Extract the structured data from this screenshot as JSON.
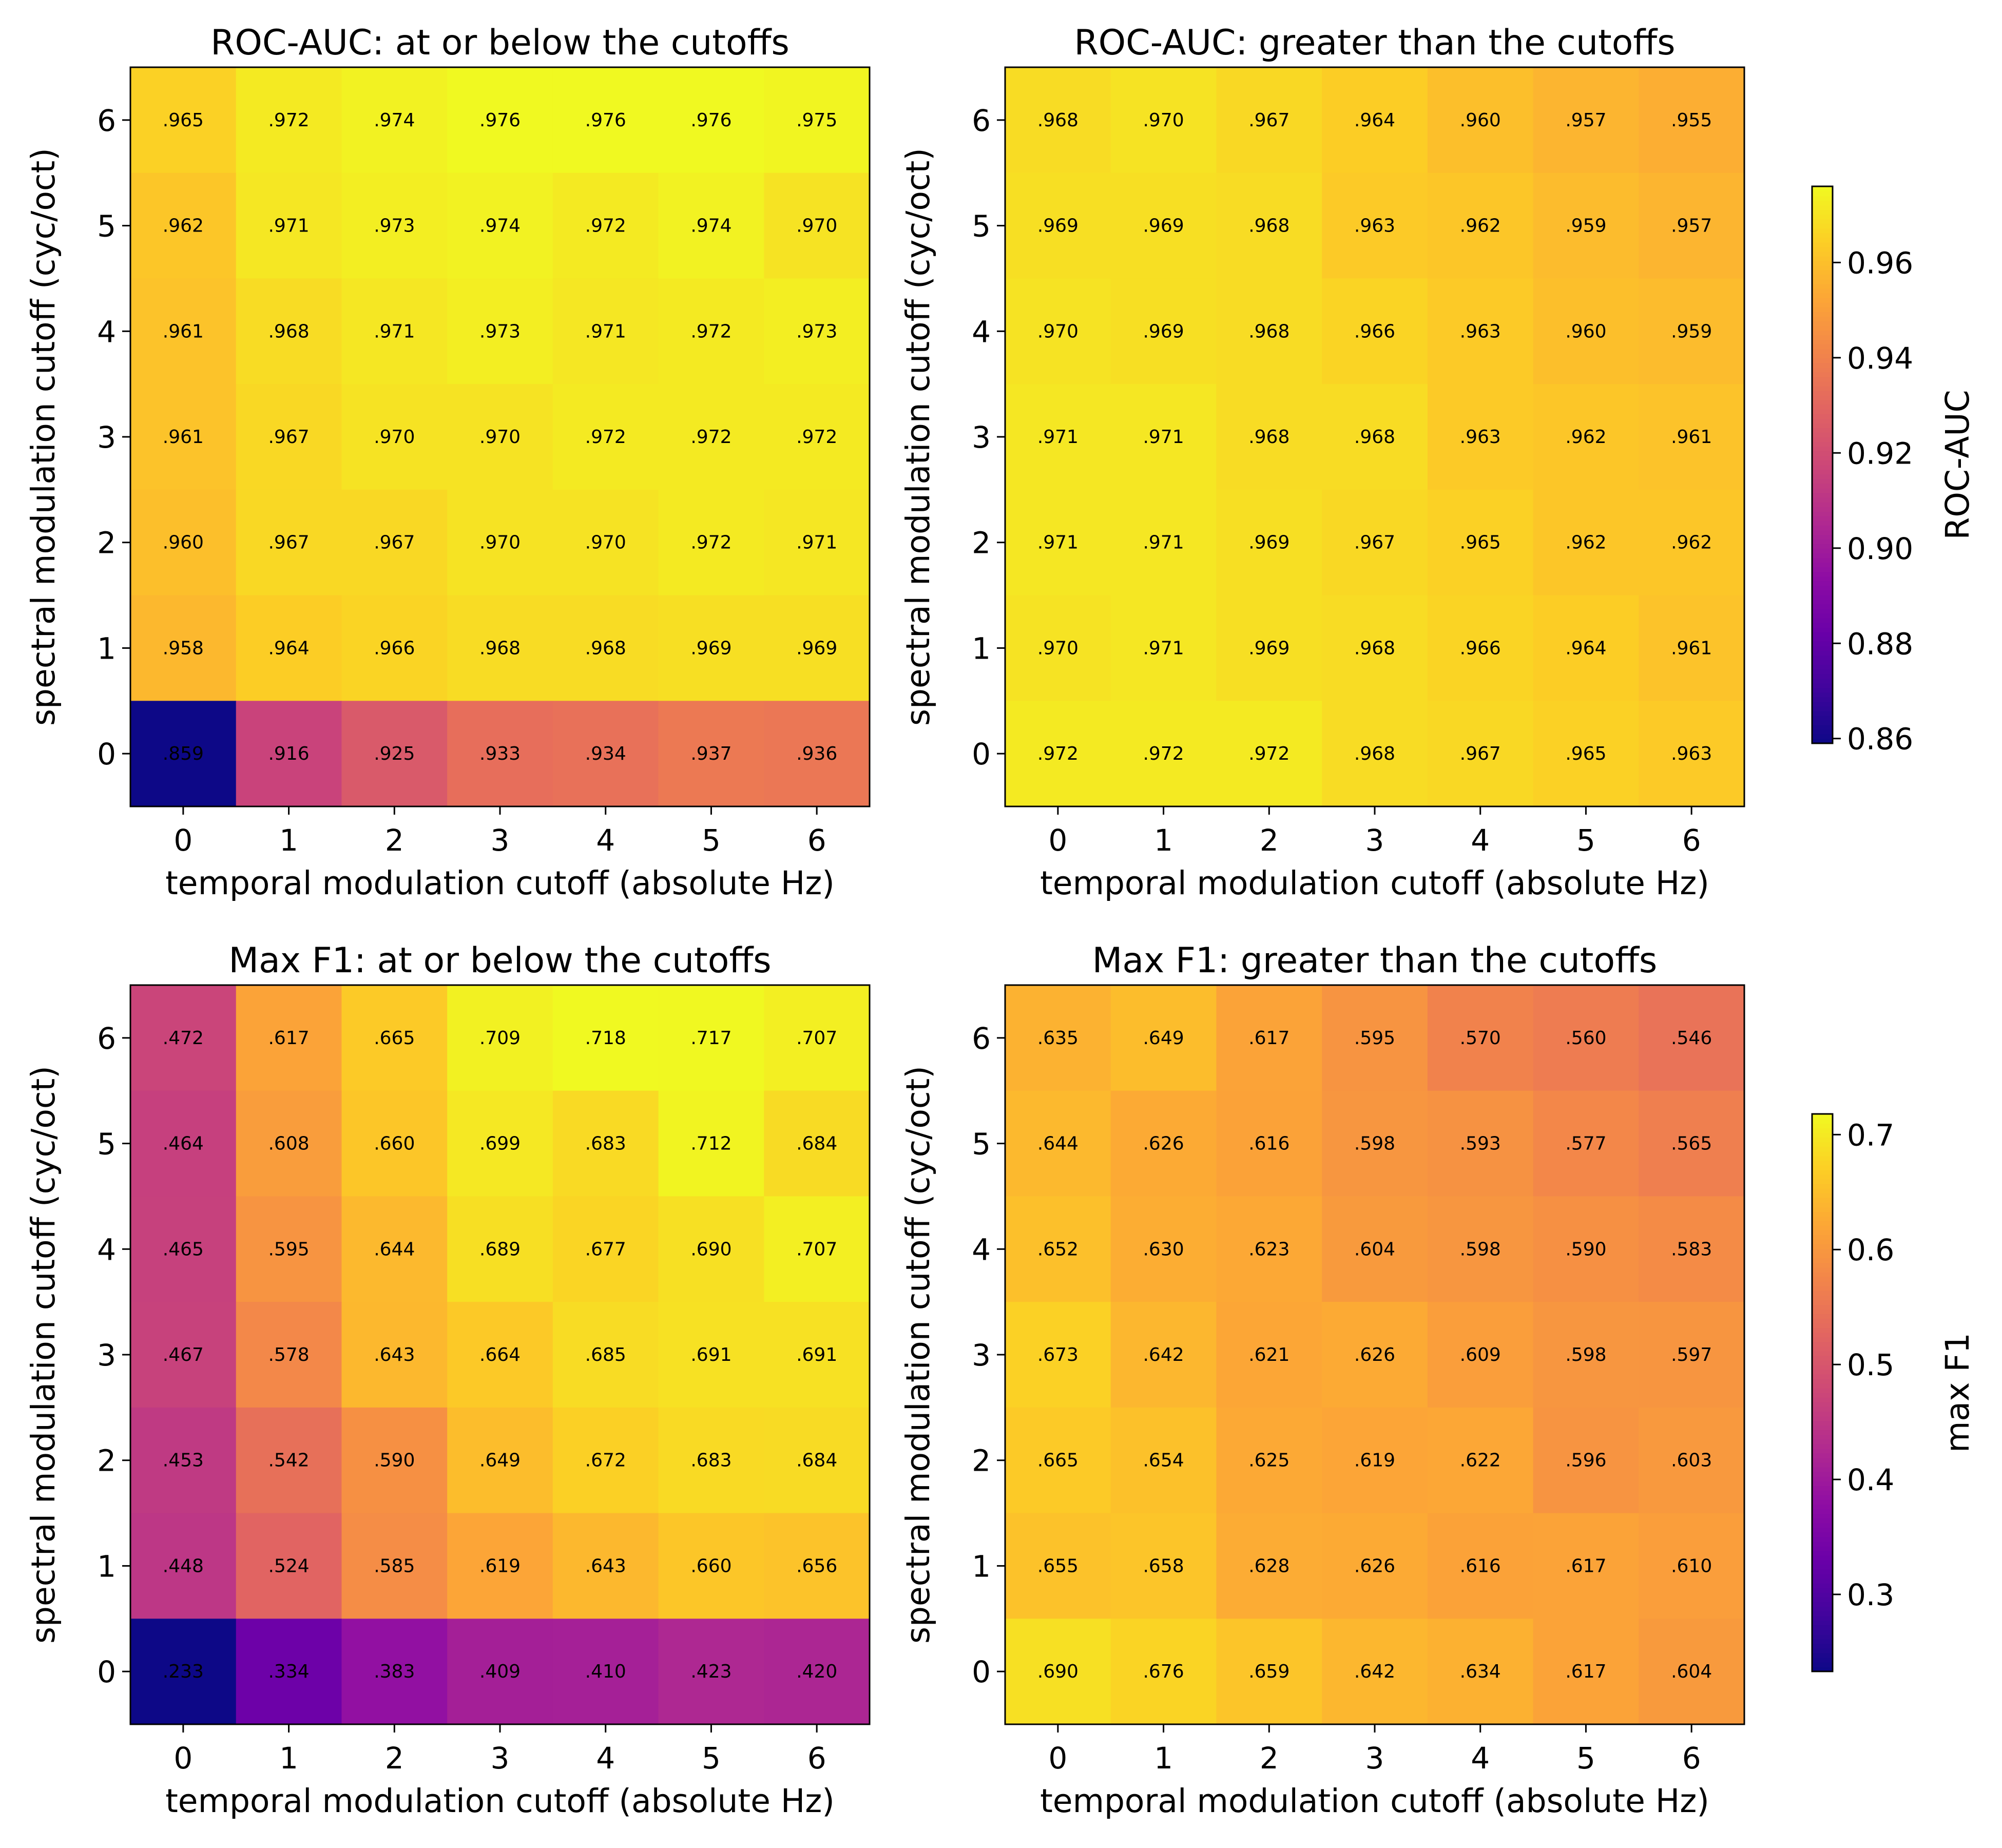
{
  "chart_data": [
    {
      "type": "heatmap",
      "title": "ROC-AUC: at or below the cutoffs",
      "xlabel": "temporal modulation cutoff (absolute Hz)",
      "ylabel": "spectral modulation cutoff (cyc/oct)",
      "x_ticks": [
        "0",
        "1",
        "2",
        "3",
        "4",
        "5",
        "6"
      ],
      "y_ticks": [
        "0",
        "1",
        "2",
        "3",
        "4",
        "5",
        "6"
      ],
      "colormap": "plasma",
      "vmin": 0.859,
      "vmax": 0.976,
      "colorbar": "roc",
      "row_order": "spectral cutoff 6 (top) to 0 (bottom)",
      "values": [
        [
          0.965,
          0.972,
          0.974,
          0.976,
          0.976,
          0.976,
          0.975
        ],
        [
          0.962,
          0.971,
          0.973,
          0.974,
          0.972,
          0.974,
          0.97
        ],
        [
          0.961,
          0.968,
          0.971,
          0.973,
          0.971,
          0.972,
          0.973
        ],
        [
          0.961,
          0.967,
          0.97,
          0.97,
          0.972,
          0.972,
          0.972
        ],
        [
          0.96,
          0.967,
          0.967,
          0.97,
          0.97,
          0.972,
          0.971
        ],
        [
          0.958,
          0.964,
          0.966,
          0.968,
          0.968,
          0.969,
          0.969
        ],
        [
          0.859,
          0.916,
          0.925,
          0.933,
          0.934,
          0.937,
          0.936
        ]
      ],
      "labels": [
        [
          ".965",
          ".972",
          ".974",
          ".976",
          ".976",
          ".976",
          ".975"
        ],
        [
          ".962",
          ".971",
          ".973",
          ".974",
          ".972",
          ".974",
          ".970"
        ],
        [
          ".961",
          ".968",
          ".971",
          ".973",
          ".971",
          ".972",
          ".973"
        ],
        [
          ".961",
          ".967",
          ".970",
          ".970",
          ".972",
          ".972",
          ".972"
        ],
        [
          ".960",
          ".967",
          ".967",
          ".970",
          ".970",
          ".972",
          ".971"
        ],
        [
          ".958",
          ".964",
          ".966",
          ".968",
          ".968",
          ".969",
          ".969"
        ],
        [
          ".859",
          ".916",
          ".925",
          ".933",
          ".934",
          ".937",
          ".936"
        ]
      ]
    },
    {
      "type": "heatmap",
      "title": "ROC-AUC: greater than the cutoffs",
      "xlabel": "temporal modulation cutoff (absolute Hz)",
      "ylabel": "spectral modulation cutoff (cyc/oct)",
      "x_ticks": [
        "0",
        "1",
        "2",
        "3",
        "4",
        "5",
        "6"
      ],
      "y_ticks": [
        "0",
        "1",
        "2",
        "3",
        "4",
        "5",
        "6"
      ],
      "colormap": "plasma",
      "vmin": 0.859,
      "vmax": 0.976,
      "colorbar": "roc",
      "row_order": "spectral cutoff 6 (top) to 0 (bottom)",
      "values": [
        [
          0.968,
          0.97,
          0.967,
          0.964,
          0.96,
          0.957,
          0.955
        ],
        [
          0.969,
          0.969,
          0.968,
          0.963,
          0.962,
          0.959,
          0.957
        ],
        [
          0.97,
          0.969,
          0.968,
          0.966,
          0.963,
          0.96,
          0.959
        ],
        [
          0.971,
          0.971,
          0.968,
          0.968,
          0.963,
          0.962,
          0.961
        ],
        [
          0.971,
          0.971,
          0.969,
          0.967,
          0.965,
          0.962,
          0.962
        ],
        [
          0.97,
          0.971,
          0.969,
          0.968,
          0.966,
          0.964,
          0.961
        ],
        [
          0.972,
          0.972,
          0.972,
          0.968,
          0.967,
          0.965,
          0.963
        ]
      ],
      "labels": [
        [
          ".968",
          ".970",
          ".967",
          ".964",
          ".960",
          ".957",
          ".955"
        ],
        [
          ".969",
          ".969",
          ".968",
          ".963",
          ".962",
          ".959",
          ".957"
        ],
        [
          ".970",
          ".969",
          ".968",
          ".966",
          ".963",
          ".960",
          ".959"
        ],
        [
          ".971",
          ".971",
          ".968",
          ".968",
          ".963",
          ".962",
          ".961"
        ],
        [
          ".971",
          ".971",
          ".969",
          ".967",
          ".965",
          ".962",
          ".962"
        ],
        [
          ".970",
          ".971",
          ".969",
          ".968",
          ".966",
          ".964",
          ".961"
        ],
        [
          ".972",
          ".972",
          ".972",
          ".968",
          ".967",
          ".965",
          ".963"
        ]
      ]
    },
    {
      "type": "heatmap",
      "title": "Max F1: at or below the cutoffs",
      "xlabel": "temporal modulation cutoff (absolute Hz)",
      "ylabel": "spectral modulation cutoff (cyc/oct)",
      "x_ticks": [
        "0",
        "1",
        "2",
        "3",
        "4",
        "5",
        "6"
      ],
      "y_ticks": [
        "0",
        "1",
        "2",
        "3",
        "4",
        "5",
        "6"
      ],
      "colormap": "plasma",
      "vmin": 0.233,
      "vmax": 0.718,
      "colorbar": "f1",
      "row_order": "spectral cutoff 6 (top) to 0 (bottom)",
      "values": [
        [
          0.472,
          0.617,
          0.665,
          0.709,
          0.718,
          0.717,
          0.707
        ],
        [
          0.464,
          0.608,
          0.66,
          0.699,
          0.683,
          0.712,
          0.684
        ],
        [
          0.465,
          0.595,
          0.644,
          0.689,
          0.677,
          0.69,
          0.707
        ],
        [
          0.467,
          0.578,
          0.643,
          0.664,
          0.685,
          0.691,
          0.691
        ],
        [
          0.453,
          0.542,
          0.59,
          0.649,
          0.672,
          0.683,
          0.684
        ],
        [
          0.448,
          0.524,
          0.585,
          0.619,
          0.643,
          0.66,
          0.656
        ],
        [
          0.233,
          0.334,
          0.383,
          0.409,
          0.41,
          0.423,
          0.42
        ]
      ],
      "labels": [
        [
          ".472",
          ".617",
          ".665",
          ".709",
          ".718",
          ".717",
          ".707"
        ],
        [
          ".464",
          ".608",
          ".660",
          ".699",
          ".683",
          ".712",
          ".684"
        ],
        [
          ".465",
          ".595",
          ".644",
          ".689",
          ".677",
          ".690",
          ".707"
        ],
        [
          ".467",
          ".578",
          ".643",
          ".664",
          ".685",
          ".691",
          ".691"
        ],
        [
          ".453",
          ".542",
          ".590",
          ".649",
          ".672",
          ".683",
          ".684"
        ],
        [
          ".448",
          ".524",
          ".585",
          ".619",
          ".643",
          ".660",
          ".656"
        ],
        [
          ".233",
          ".334",
          ".383",
          ".409",
          ".410",
          ".423",
          ".420"
        ]
      ]
    },
    {
      "type": "heatmap",
      "title": "Max F1: greater than the cutoffs",
      "xlabel": "temporal modulation cutoff (absolute Hz)",
      "ylabel": "spectral modulation cutoff (cyc/oct)",
      "x_ticks": [
        "0",
        "1",
        "2",
        "3",
        "4",
        "5",
        "6"
      ],
      "y_ticks": [
        "0",
        "1",
        "2",
        "3",
        "4",
        "5",
        "6"
      ],
      "colormap": "plasma",
      "vmin": 0.233,
      "vmax": 0.718,
      "colorbar": "f1",
      "row_order": "spectral cutoff 6 (top) to 0 (bottom)",
      "values": [
        [
          0.635,
          0.649,
          0.617,
          0.595,
          0.57,
          0.56,
          0.546
        ],
        [
          0.644,
          0.626,
          0.616,
          0.598,
          0.593,
          0.577,
          0.565
        ],
        [
          0.652,
          0.63,
          0.623,
          0.604,
          0.598,
          0.59,
          0.583
        ],
        [
          0.673,
          0.642,
          0.621,
          0.626,
          0.609,
          0.598,
          0.597
        ],
        [
          0.665,
          0.654,
          0.625,
          0.619,
          0.622,
          0.596,
          0.603
        ],
        [
          0.655,
          0.658,
          0.628,
          0.626,
          0.616,
          0.617,
          0.61
        ],
        [
          0.69,
          0.676,
          0.659,
          0.642,
          0.634,
          0.617,
          0.604
        ]
      ],
      "labels": [
        [
          ".635",
          ".649",
          ".617",
          ".595",
          ".570",
          ".560",
          ".546"
        ],
        [
          ".644",
          ".626",
          ".616",
          ".598",
          ".593",
          ".577",
          ".565"
        ],
        [
          ".652",
          ".630",
          ".623",
          ".604",
          ".598",
          ".590",
          ".583"
        ],
        [
          ".673",
          ".642",
          ".621",
          ".626",
          ".609",
          ".598",
          ".597"
        ],
        [
          ".665",
          ".654",
          ".625",
          ".619",
          ".622",
          ".596",
          ".603"
        ],
        [
          ".655",
          ".658",
          ".628",
          ".626",
          ".616",
          ".617",
          ".610"
        ],
        [
          ".690",
          ".676",
          ".659",
          ".642",
          ".634",
          ".617",
          ".604"
        ]
      ]
    }
  ],
  "colorbars": {
    "roc": {
      "label": "ROC-AUC",
      "vmin": 0.859,
      "vmax": 0.976,
      "ticks": [
        0.86,
        0.88,
        0.9,
        0.92,
        0.94,
        0.96
      ],
      "tick_labels": [
        "0.86",
        "0.88",
        "0.90",
        "0.92",
        "0.94",
        "0.96"
      ]
    },
    "f1": {
      "label": "max F1",
      "vmin": 0.233,
      "vmax": 0.718,
      "ticks": [
        0.3,
        0.4,
        0.5,
        0.6,
        0.7
      ],
      "tick_labels": [
        "0.3",
        "0.4",
        "0.5",
        "0.6",
        "0.7"
      ]
    }
  }
}
